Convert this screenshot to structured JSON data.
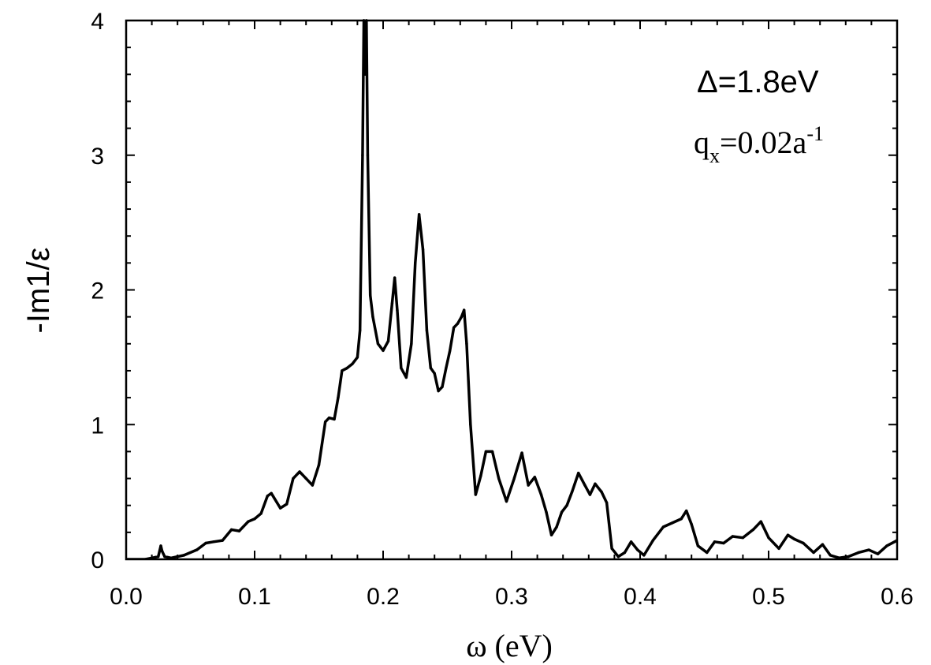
{
  "chart_data": {
    "type": "line",
    "xlabel": "ω (eV)",
    "ylabel": "-Im1/ε",
    "xlim": [
      0.0,
      0.6
    ],
    "ylim": [
      0,
      4
    ],
    "x_ticks": [
      "0.0",
      "0.1",
      "0.2",
      "0.3",
      "0.4",
      "0.5",
      "0.6"
    ],
    "y_ticks": [
      "0",
      "1",
      "2",
      "3",
      "4"
    ],
    "x_tick_values": [
      0.0,
      0.1,
      0.2,
      0.3,
      0.4,
      0.5,
      0.6
    ],
    "y_tick_values": [
      0,
      1,
      2,
      3,
      4
    ],
    "grid": false,
    "line_color": "#000000",
    "annotations": {
      "delta": "Δ=1.8eV",
      "q_main": "q",
      "q_sub": "x",
      "q_value": "=0.02a",
      "q_sup": "-1"
    },
    "series": [
      {
        "x": [
          0.0,
          0.015,
          0.02,
          0.025,
          0.027,
          0.028,
          0.03,
          0.035,
          0.045,
          0.055,
          0.062,
          0.068,
          0.075,
          0.082,
          0.088,
          0.095,
          0.1,
          0.105,
          0.11,
          0.113,
          0.12,
          0.125,
          0.13,
          0.135,
          0.14,
          0.145,
          0.15,
          0.155,
          0.158,
          0.162,
          0.165,
          0.168,
          0.172,
          0.176,
          0.18,
          0.182,
          0.184,
          0.185,
          0.186,
          0.187,
          0.188,
          0.19,
          0.192,
          0.196,
          0.2,
          0.204,
          0.207,
          0.209,
          0.211,
          0.214,
          0.218,
          0.222,
          0.225,
          0.228,
          0.231,
          0.234,
          0.237,
          0.24,
          0.243,
          0.246,
          0.249,
          0.252,
          0.255,
          0.258,
          0.261,
          0.263,
          0.265,
          0.268,
          0.272,
          0.276,
          0.28,
          0.285,
          0.29,
          0.296,
          0.302,
          0.308,
          0.313,
          0.318,
          0.323,
          0.327,
          0.331,
          0.335,
          0.339,
          0.343,
          0.347,
          0.352,
          0.357,
          0.361,
          0.365,
          0.37,
          0.374,
          0.378,
          0.383,
          0.388,
          0.393,
          0.398,
          0.403,
          0.41,
          0.418,
          0.425,
          0.432,
          0.436,
          0.44,
          0.445,
          0.452,
          0.458,
          0.465,
          0.472,
          0.48,
          0.488,
          0.494,
          0.5,
          0.508,
          0.515,
          0.52,
          0.527,
          0.535,
          0.542,
          0.548,
          0.555,
          0.562,
          0.57,
          0.578,
          0.585,
          0.592,
          0.6
        ],
        "y": [
          0.0,
          0.0,
          0.01,
          0.02,
          0.1,
          0.06,
          0.02,
          0.01,
          0.03,
          0.07,
          0.12,
          0.13,
          0.14,
          0.22,
          0.21,
          0.28,
          0.3,
          0.34,
          0.47,
          0.49,
          0.38,
          0.41,
          0.6,
          0.65,
          0.6,
          0.55,
          0.7,
          1.02,
          1.05,
          1.04,
          1.2,
          1.4,
          1.42,
          1.45,
          1.5,
          1.7,
          3.0,
          4.0,
          3.6,
          4.0,
          3.0,
          1.96,
          1.8,
          1.6,
          1.55,
          1.62,
          1.9,
          2.09,
          1.85,
          1.42,
          1.35,
          1.6,
          2.2,
          2.56,
          2.3,
          1.7,
          1.42,
          1.38,
          1.25,
          1.28,
          1.42,
          1.55,
          1.72,
          1.75,
          1.8,
          1.85,
          1.6,
          1.0,
          0.48,
          0.62,
          0.8,
          0.8,
          0.6,
          0.43,
          0.6,
          0.79,
          0.55,
          0.61,
          0.48,
          0.35,
          0.18,
          0.24,
          0.35,
          0.4,
          0.5,
          0.64,
          0.55,
          0.48,
          0.56,
          0.5,
          0.42,
          0.08,
          0.02,
          0.05,
          0.13,
          0.07,
          0.03,
          0.14,
          0.24,
          0.27,
          0.3,
          0.36,
          0.26,
          0.1,
          0.05,
          0.13,
          0.12,
          0.17,
          0.16,
          0.22,
          0.28,
          0.16,
          0.08,
          0.18,
          0.15,
          0.12,
          0.05,
          0.11,
          0.03,
          0.01,
          0.02,
          0.05,
          0.07,
          0.04,
          0.1,
          0.14
        ]
      }
    ]
  }
}
